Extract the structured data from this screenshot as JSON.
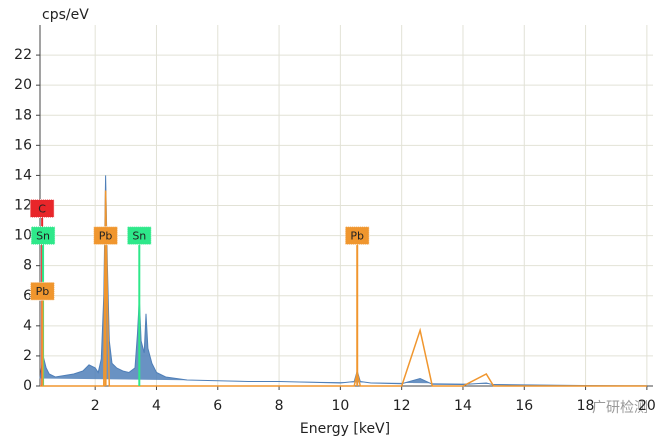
{
  "chart_data": {
    "type": "area",
    "ylabel": "cps/eV",
    "xlabel": "Energy [keV]",
    "xlim": [
      0.2,
      20.2
    ],
    "ylim": [
      0,
      24
    ],
    "xticks": [
      2,
      4,
      6,
      8,
      10,
      12,
      14,
      16,
      18,
      20
    ],
    "yticks": [
      0,
      2,
      4,
      6,
      8,
      10,
      12,
      14,
      16,
      18,
      20,
      22
    ],
    "grid": true,
    "x": [
      0.2,
      0.3,
      0.4,
      0.5,
      0.7,
      1.0,
      1.3,
      1.6,
      1.8,
      2.0,
      2.1,
      2.2,
      2.28,
      2.34,
      2.4,
      2.46,
      2.55,
      2.7,
      2.9,
      3.1,
      3.3,
      3.38,
      3.44,
      3.5,
      3.6,
      3.66,
      3.72,
      3.85,
      4.0,
      4.3,
      5,
      6,
      7,
      8,
      9,
      10,
      10.45,
      10.55,
      10.65,
      11,
      12,
      12.6,
      13,
      14,
      14.76,
      15,
      16,
      17,
      18,
      19,
      20
    ],
    "series": [
      {
        "color": "#4f7fb8",
        "values": [
          0.5,
          2.0,
          1.2,
          0.8,
          0.6,
          0.7,
          0.8,
          1.0,
          1.4,
          1.2,
          0.9,
          1.8,
          6,
          14,
          8,
          3,
          1.5,
          1.2,
          1.0,
          0.9,
          1.2,
          3.5,
          5.8,
          3,
          2.2,
          4.8,
          2.5,
          1.5,
          0.9,
          0.6,
          0.4,
          0.35,
          0.3,
          0.3,
          0.25,
          0.2,
          0.3,
          1.0,
          0.3,
          0.2,
          0.15,
          0.5,
          0.12,
          0.1,
          0.2,
          0.08,
          0.05,
          0.03,
          0.02,
          0.01,
          0.01
        ]
      },
      {
        "color": "#f0962e",
        "values": [
          0,
          0,
          0,
          0,
          0,
          0,
          0,
          0,
          0,
          0,
          0,
          0,
          0,
          13,
          5.4,
          0,
          0,
          0,
          0,
          0,
          0,
          0,
          0,
          0,
          0,
          0,
          0,
          0,
          0,
          0,
          0,
          0,
          0,
          0,
          0,
          0,
          0,
          0.9,
          0,
          0,
          0,
          3.7,
          0,
          0,
          0.8,
          0,
          0,
          0,
          0,
          0,
          0
        ]
      }
    ],
    "markers": [
      {
        "label": "C",
        "energy": 0.27,
        "level": 11.8,
        "color": "#e8262a"
      },
      {
        "label": "Sn",
        "energy": 0.3,
        "level": 10,
        "color": "#2ee88a"
      },
      {
        "label": "Pb",
        "energy": 0.28,
        "level": 6.3,
        "color": "#f0962e"
      },
      {
        "label": "Pb",
        "energy": 2.34,
        "level": 10,
        "color": "#f0962e"
      },
      {
        "label": "Sn",
        "energy": 3.44,
        "level": 10,
        "color": "#2ee88a"
      },
      {
        "label": "Pb",
        "energy": 10.55,
        "level": 10,
        "color": "#f0962e"
      }
    ],
    "watermark": "广研检测"
  }
}
